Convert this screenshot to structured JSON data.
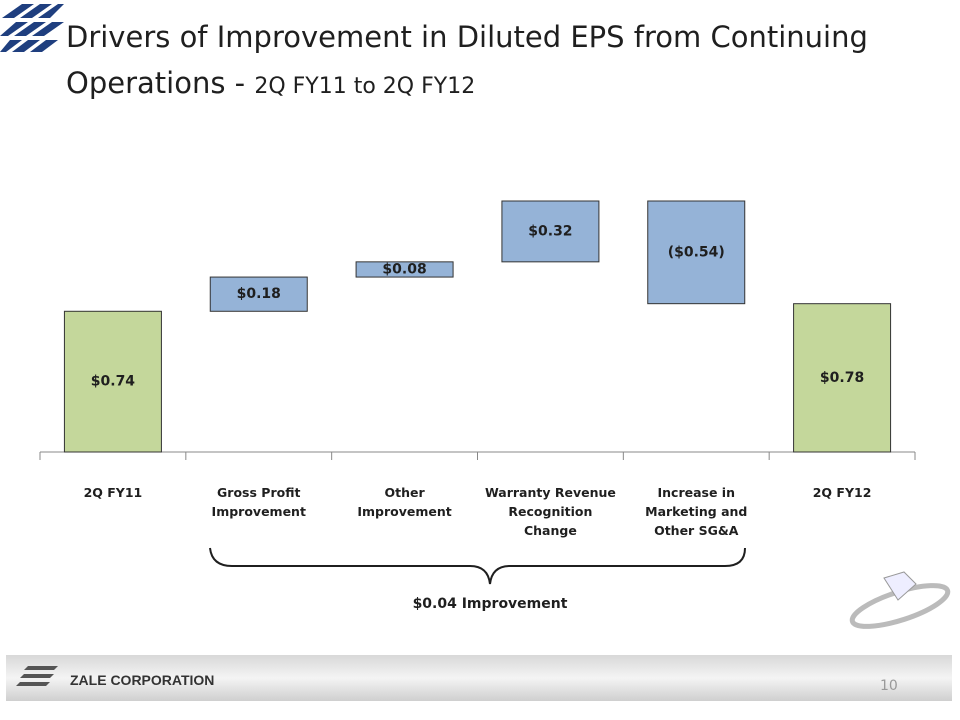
{
  "chart_data": {
    "type": "waterfall",
    "title": "Drivers of Improvement in Diluted EPS from Continuing Operations - ",
    "subtitle": "2Q FY11 to 2Q FY12",
    "categories": [
      "2Q FY11",
      "Gross Profit Improvement",
      "Other Improvement",
      "Warranty Revenue Recognition Change",
      "Increase in Marketing and Other SG&A",
      "2Q FY12"
    ],
    "values": [
      0.74,
      0.18,
      0.08,
      0.32,
      -0.54,
      0.78
    ],
    "value_labels": [
      "$0.74",
      "$0.18",
      "$0.08",
      "$0.32",
      "($0.54)",
      "$0.78"
    ],
    "measure": [
      "absolute",
      "relative",
      "relative",
      "relative",
      "relative",
      "total"
    ],
    "colors": [
      "#c4d79b",
      "#95b3d7",
      "#95b3d7",
      "#95b3d7",
      "#95b3d7",
      "#c4d79b"
    ],
    "annotation": "$0.04 Improvement"
  },
  "footer": {
    "company": "ZALE CORPORATION",
    "page": "10"
  }
}
